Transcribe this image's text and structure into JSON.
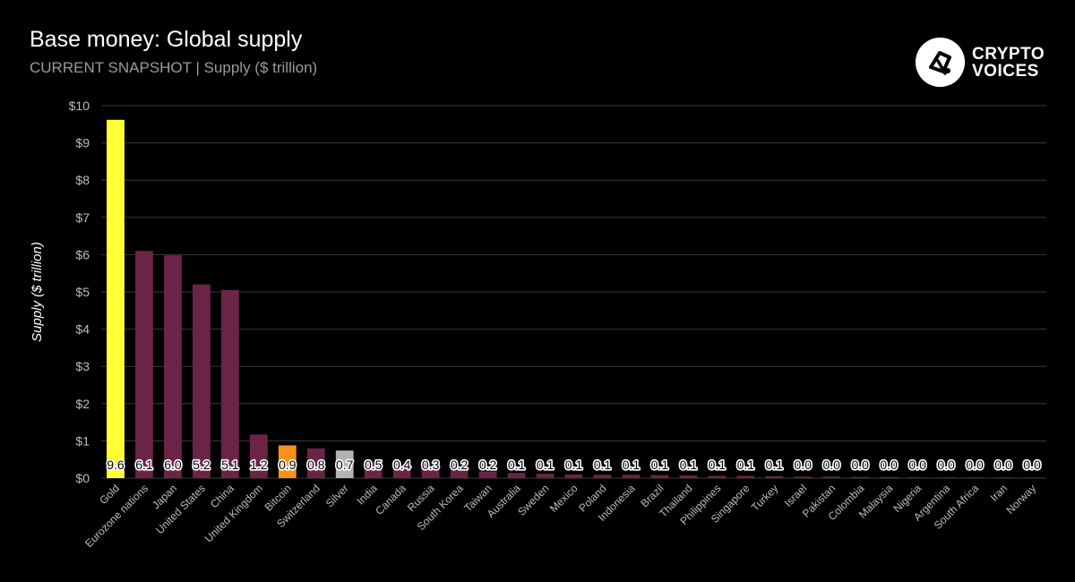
{
  "header": {
    "title": "Base money: Global supply",
    "subtitle": "CURRENT SNAPSHOT | Supply ($ trillion)"
  },
  "logo": {
    "line1": "CRYPTO",
    "line2": "VOICES",
    "icon": "crypto-voices-logo-icon"
  },
  "colors": {
    "background": "#000000",
    "default_bar": "#6b2448",
    "gold": "#ffff33",
    "bitcoin": "#f7931a",
    "silver": "#b3b3b3",
    "grid": "#3a3a3a"
  },
  "chart_data": {
    "type": "bar",
    "ylabel": "Supply ($ trillion)",
    "xlabel": "",
    "ylim": [
      0,
      10
    ],
    "yticks": [
      "$0",
      "$1",
      "$2",
      "$3",
      "$4",
      "$5",
      "$6",
      "$7",
      "$8",
      "$9",
      "$10"
    ],
    "grid": true,
    "categories": [
      "Gold",
      "Eurozone nations",
      "Japan",
      "United States",
      "China",
      "United Kingdom",
      "Bitcoin",
      "Switzerland",
      "Silver",
      "India",
      "Canada",
      "Russia",
      "South Korea",
      "Taiwan",
      "Australia",
      "Sweden",
      "Mexico",
      "Poland",
      "Indonesia",
      "Brazil",
      "Thailand",
      "Philippines",
      "Singapore",
      "Turkey",
      "Israel",
      "Pakistan",
      "Colombia",
      "Malaysia",
      "Nigeria",
      "Argentina",
      "South Africa",
      "Iran",
      "Norway"
    ],
    "values": [
      9.62,
      6.1,
      5.98,
      5.2,
      5.05,
      1.17,
      0.88,
      0.8,
      0.74,
      0.45,
      0.35,
      0.3,
      0.2,
      0.18,
      0.14,
      0.12,
      0.1,
      0.09,
      0.09,
      0.08,
      0.07,
      0.06,
      0.06,
      0.05,
      0.04,
      0.04,
      0.03,
      0.03,
      0.02,
      0.02,
      0.02,
      0.01,
      0.01
    ],
    "labels": [
      "9.6",
      "6.1",
      "6.0",
      "5.2",
      "5.1",
      "1.2",
      "0.9",
      "0.8",
      "0.7",
      "0.5",
      "0.4",
      "0.3",
      "0.2",
      "0.2",
      "0.1",
      "0.1",
      "0.1",
      "0.1",
      "0.1",
      "0.1",
      "0.1",
      "0.1",
      "0.1",
      "0.1",
      "0.0",
      "0.0",
      "0.0",
      "0.0",
      "0.0",
      "0.0",
      "0.0",
      "0.0",
      "0.0"
    ],
    "highlight": {
      "Gold": "#ffff33",
      "Bitcoin": "#f7931a",
      "Silver": "#b3b3b3"
    }
  }
}
